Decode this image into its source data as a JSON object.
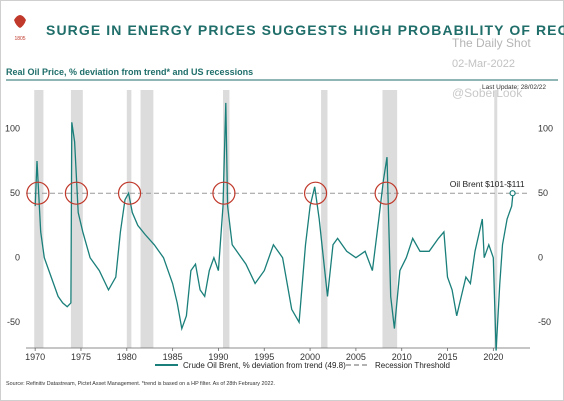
{
  "header": {
    "title": "SURGE IN ENERGY PRICES SUGGESTS HIGH PROBABILITY OF RECESSION",
    "subtitle": "Real Oil Price, % deviation from trend* and US recessions",
    "last_update": "Last Update: 28/02/22",
    "logo_year": "1805"
  },
  "watermark": {
    "brand": "The Daily Shot",
    "date": "02-Mar-2022",
    "handle": "@SoberLook"
  },
  "footer": {
    "source": "Source: Refinitiv Datastream, Pictet Asset Management. *trend is based on a HP filter. As of 28th February 2022."
  },
  "colors": {
    "title": "#1f6e6a",
    "series": "#1a7f7a",
    "recession_band": "#dcdcdc",
    "threshold": "#999999",
    "circle": "#c0392b",
    "logo": "#c0392b"
  },
  "chart_data": {
    "type": "line",
    "title": "SURGE IN ENERGY PRICES SUGGESTS HIGH PROBABILITY OF RECESSION",
    "xlim": [
      1969,
      2024
    ],
    "ylim": [
      -70,
      130
    ],
    "x_ticks": [
      1970,
      1975,
      1980,
      1985,
      1990,
      1995,
      2000,
      2005,
      2010,
      2015,
      2020
    ],
    "y_ticks": [
      100,
      50,
      0,
      -50
    ],
    "grid": false,
    "legend_position": "bottom-center",
    "recessions": [
      [
        1969.9,
        1970.9
      ],
      [
        1973.9,
        1975.2
      ],
      [
        1980.0,
        1980.5
      ],
      [
        1981.5,
        1982.9
      ],
      [
        1990.5,
        1991.2
      ],
      [
        2001.2,
        2001.9
      ],
      [
        2007.9,
        2009.5
      ],
      [
        2020.1,
        2020.4
      ]
    ],
    "threshold": {
      "value": 50,
      "label": "Recession Threshold"
    },
    "annotation": {
      "text": "Oil Brent $101-$111",
      "x": 2022.1,
      "y": 50
    },
    "circles": [
      {
        "x": 1970.3,
        "y": 50
      },
      {
        "x": 1974.5,
        "y": 50
      },
      {
        "x": 1980.3,
        "y": 50
      },
      {
        "x": 1990.6,
        "y": 50
      },
      {
        "x": 2000.6,
        "y": 50
      },
      {
        "x": 2008.3,
        "y": 50
      }
    ],
    "series": [
      {
        "name": "Crude Oil Brent, % deviation from trend (49.8)",
        "points": [
          [
            1970.0,
            40
          ],
          [
            1970.2,
            75
          ],
          [
            1970.6,
            20
          ],
          [
            1971.0,
            0
          ],
          [
            1971.5,
            -10
          ],
          [
            1972.0,
            -20
          ],
          [
            1972.5,
            -30
          ],
          [
            1973.0,
            -35
          ],
          [
            1973.5,
            -38
          ],
          [
            1973.9,
            -35
          ],
          [
            1974.0,
            105
          ],
          [
            1974.3,
            90
          ],
          [
            1974.7,
            35
          ],
          [
            1975.2,
            20
          ],
          [
            1976.0,
            0
          ],
          [
            1977.0,
            -10
          ],
          [
            1978.0,
            -25
          ],
          [
            1978.8,
            -15
          ],
          [
            1979.3,
            20
          ],
          [
            1979.8,
            45
          ],
          [
            1980.2,
            50
          ],
          [
            1980.6,
            35
          ],
          [
            1981.2,
            25
          ],
          [
            1982.0,
            18
          ],
          [
            1983.0,
            10
          ],
          [
            1984.0,
            0
          ],
          [
            1985.0,
            -20
          ],
          [
            1985.5,
            -35
          ],
          [
            1986.0,
            -55
          ],
          [
            1986.5,
            -45
          ],
          [
            1987.0,
            -10
          ],
          [
            1987.5,
            -5
          ],
          [
            1988.0,
            -25
          ],
          [
            1988.5,
            -30
          ],
          [
            1989.0,
            -10
          ],
          [
            1989.5,
            0
          ],
          [
            1990.0,
            -10
          ],
          [
            1990.5,
            40
          ],
          [
            1990.8,
            120
          ],
          [
            1991.0,
            40
          ],
          [
            1991.5,
            10
          ],
          [
            1992.0,
            5
          ],
          [
            1993.0,
            -5
          ],
          [
            1994.0,
            -20
          ],
          [
            1995.0,
            -10
          ],
          [
            1996.0,
            10
          ],
          [
            1997.0,
            0
          ],
          [
            1998.0,
            -40
          ],
          [
            1998.8,
            -50
          ],
          [
            1999.5,
            10
          ],
          [
            2000.0,
            40
          ],
          [
            2000.5,
            55
          ],
          [
            2001.0,
            30
          ],
          [
            2001.9,
            -30
          ],
          [
            2002.5,
            10
          ],
          [
            2003.0,
            15
          ],
          [
            2004.0,
            5
          ],
          [
            2005.0,
            0
          ],
          [
            2006.0,
            5
          ],
          [
            2006.8,
            -10
          ],
          [
            2007.5,
            30
          ],
          [
            2008.0,
            60
          ],
          [
            2008.4,
            78
          ],
          [
            2008.8,
            -30
          ],
          [
            2009.2,
            -55
          ],
          [
            2009.8,
            -10
          ],
          [
            2010.5,
            0
          ],
          [
            2011.2,
            15
          ],
          [
            2012.0,
            5
          ],
          [
            2013.0,
            5
          ],
          [
            2014.0,
            15
          ],
          [
            2014.6,
            20
          ],
          [
            2015.0,
            -15
          ],
          [
            2015.5,
            -25
          ],
          [
            2016.0,
            -45
          ],
          [
            2016.5,
            -30
          ],
          [
            2017.0,
            -15
          ],
          [
            2017.5,
            -20
          ],
          [
            2018.0,
            5
          ],
          [
            2018.8,
            30
          ],
          [
            2019.0,
            0
          ],
          [
            2019.5,
            10
          ],
          [
            2020.0,
            0
          ],
          [
            2020.3,
            -72
          ],
          [
            2020.7,
            -20
          ],
          [
            2021.0,
            10
          ],
          [
            2021.5,
            30
          ],
          [
            2022.0,
            40
          ],
          [
            2022.15,
            50
          ]
        ]
      }
    ]
  }
}
